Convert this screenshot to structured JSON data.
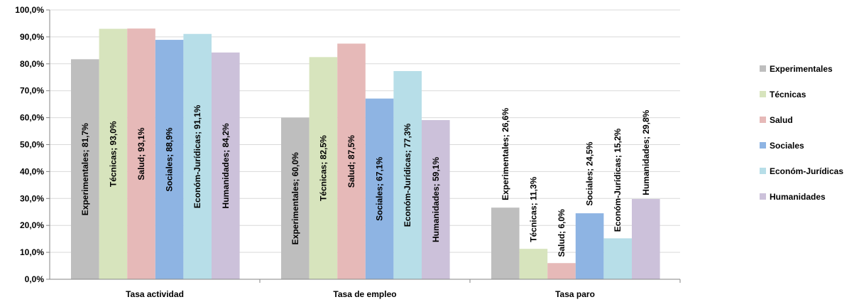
{
  "chart_data": {
    "type": "bar",
    "categories": [
      "Tasa actividad",
      "Tasa de empleo",
      "Tasa paro"
    ],
    "series": [
      {
        "name": "Experimentales",
        "color": "#BEBEBE",
        "values": [
          81.7,
          60.0,
          26.6
        ],
        "labels": [
          "Experimentales; 81,7%",
          "Experimentales; 60,0%",
          "Experimentales; 26,6%"
        ]
      },
      {
        "name": "Técnicas",
        "color": "#D7E4BD",
        "values": [
          93.0,
          82.5,
          11.3
        ],
        "labels": [
          "Técnicas; 93,0%",
          "Técnicas; 82,5%",
          "Técnicas; 11,3%"
        ]
      },
      {
        "name": "Salud",
        "color": "#E6B9B8",
        "values": [
          93.1,
          87.5,
          6.0
        ],
        "labels": [
          "Salud; 93,1%",
          "Salud; 87,5%",
          "Salud; 6,0%"
        ]
      },
      {
        "name": "Sociales",
        "color": "#8EB4E3",
        "values": [
          88.9,
          67.1,
          24.5
        ],
        "labels": [
          "Sociales; 88,9%",
          "Sociales; 67,1%",
          "Sociales; 24,5%"
        ]
      },
      {
        "name": "Económ-Jurídicas",
        "color": "#B7DEE8",
        "values": [
          91.1,
          77.3,
          15.2
        ],
        "labels": [
          "Económ-Jurídicas; 91,1%",
          "Económ-Jurídicas; 77,3%",
          "Económ-Jurídicas; 15,2%"
        ]
      },
      {
        "name": "Humanidades",
        "color": "#CCC1DA",
        "values": [
          84.2,
          59.1,
          29.8
        ],
        "labels": [
          "Humanidades; 84,2%",
          "Humanidades; 59,1%",
          "Humanidades; 29,8%"
        ]
      }
    ],
    "y_ticks": [
      "0,0%",
      "10,0%",
      "20,0%",
      "30,0%",
      "40,0%",
      "50,0%",
      "60,0%",
      "70,0%",
      "80,0%",
      "90,0%",
      "100,0%"
    ],
    "ylim": [
      0,
      100
    ],
    "grid": true,
    "legend_position": "right"
  }
}
